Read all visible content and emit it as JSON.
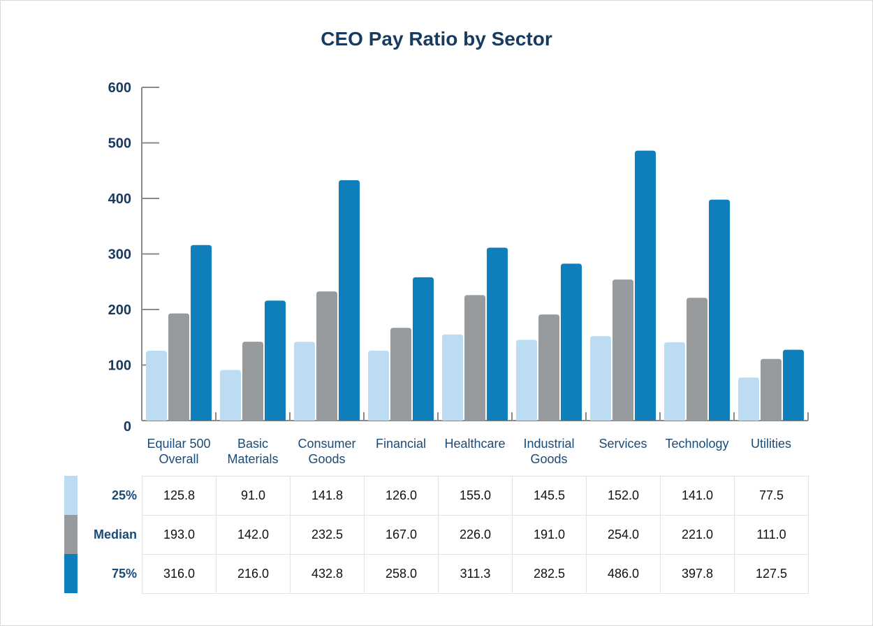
{
  "colors": {
    "p25": "#bcdcf3",
    "median": "#979b9e",
    "p75": "#0e7fba",
    "axis": "#8a8a8a",
    "title": "#173a5e"
  },
  "chart_data": {
    "type": "bar",
    "title": "CEO Pay Ratio by Sector",
    "xlabel": "",
    "ylabel": "",
    "ylim": [
      0,
      600
    ],
    "yticks": [
      "0",
      "100",
      "200",
      "300",
      "400",
      "500",
      "600"
    ],
    "categories": [
      [
        "Equilar 500",
        "Overall"
      ],
      [
        "Basic",
        "Materials"
      ],
      [
        "Consumer",
        "Goods"
      ],
      [
        "Financial"
      ],
      [
        "Healthcare"
      ],
      [
        "Industrial",
        "Goods"
      ],
      [
        "Services"
      ],
      [
        "Technology"
      ],
      [
        "Utilities"
      ]
    ],
    "series": [
      {
        "name": "25%",
        "values": [
          125.8,
          91.0,
          141.8,
          126.0,
          155.0,
          145.5,
          152.0,
          141.0,
          77.5
        ]
      },
      {
        "name": "Median",
        "values": [
          193.0,
          142.0,
          232.5,
          167.0,
          226.0,
          191.0,
          254.0,
          221.0,
          111.0
        ]
      },
      {
        "name": "75%",
        "values": [
          316.0,
          216.0,
          432.8,
          258.0,
          311.3,
          282.5,
          486.0,
          397.8,
          127.5
        ]
      }
    ],
    "table": [
      [
        "125.8",
        "91.0",
        "141.8",
        "126.0",
        "155.0",
        "145.5",
        "152.0",
        "141.0",
        "77.5"
      ],
      [
        "193.0",
        "142.0",
        "232.5",
        "167.0",
        "226.0",
        "191.0",
        "254.0",
        "221.0",
        "111.0"
      ],
      [
        "316.0",
        "216.0",
        "432.8",
        "258.0",
        "311.3",
        "282.5",
        "486.0",
        "397.8",
        "127.5"
      ]
    ],
    "grid": false,
    "legend": "table-left"
  }
}
